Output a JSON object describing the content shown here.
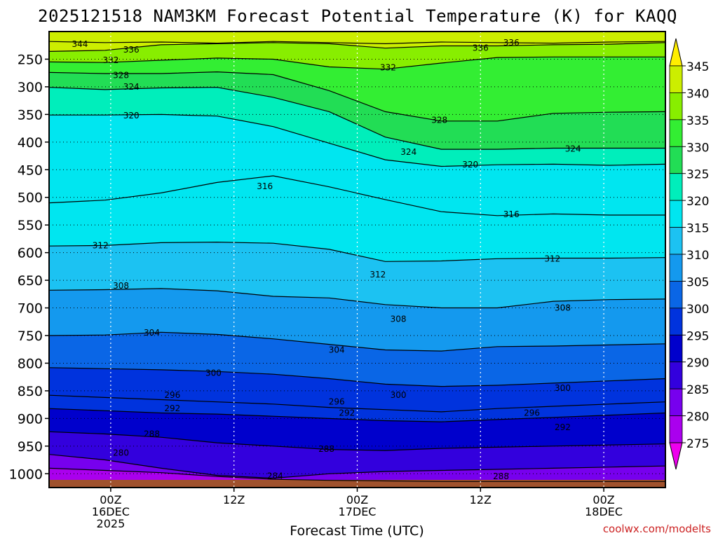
{
  "chart_data": {
    "type": "time-height-contour",
    "title": "2025121518 NAM3KM Forecast Potential Temperature (K) for KAQQ",
    "xlabel": "Forecast Time (UTC)",
    "watermark": "coolwx.com/modelts",
    "x_ticks": [
      {
        "hour": 6,
        "lines": [
          "00Z",
          "16DEC",
          "2025"
        ]
      },
      {
        "hour": 18,
        "lines": [
          "12Z"
        ]
      },
      {
        "hour": 30,
        "lines": [
          "00Z",
          "17DEC"
        ]
      },
      {
        "hour": 42,
        "lines": [
          "12Z"
        ]
      },
      {
        "hour": 54,
        "lines": [
          "00Z",
          "18DEC"
        ]
      }
    ],
    "x_range_hours": [
      0,
      60
    ],
    "y_axis": {
      "type": "pressure",
      "units": "hPa",
      "range": [
        200,
        1025
      ],
      "ticks": [
        250,
        300,
        350,
        400,
        450,
        500,
        550,
        600,
        650,
        700,
        750,
        800,
        850,
        900,
        950,
        1000
      ]
    },
    "colorbar": {
      "min": 275,
      "max": 345,
      "step": 5,
      "labels": [
        "345",
        "340",
        "335",
        "330",
        "325",
        "320",
        "315",
        "310",
        "305",
        "300",
        "295",
        "290",
        "285",
        "280",
        "275"
      ],
      "colors": [
        "#ee00ee",
        "#aa00ee",
        "#7700ee",
        "#3300dd",
        "#0000cc",
        "#0033dd",
        "#0a66e6",
        "#1499ee",
        "#1cc2f2",
        "#00e6f0",
        "#00eebb",
        "#22dd55",
        "#33ee33",
        "#88ee00",
        "#ccee00",
        "#ffee00"
      ]
    },
    "series": [
      {
        "name": "344 K",
        "values": [
          218,
          220,
          219,
          221,
          218,
          220,
          222,
          219,
          220,
          221,
          219,
          218
        ]
      },
      {
        "name": "336 K",
        "values": [
          236,
          234,
          224,
          222,
          220,
          222,
          230,
          226,
          226,
          224,
          223,
          220
        ]
      },
      {
        "name": "332 K",
        "values": [
          255,
          256,
          252,
          248,
          250,
          264,
          268,
          257,
          247,
          246,
          246,
          246
        ]
      },
      {
        "name": "328 K",
        "values": [
          274,
          276,
          276,
          273,
          278,
          307,
          345,
          362,
          362,
          348,
          346,
          345
        ]
      },
      {
        "name": "324 K",
        "values": [
          301,
          305,
          302,
          301,
          319,
          345,
          391,
          413,
          413,
          411,
          411,
          411
        ]
      },
      {
        "name": "320 K",
        "values": [
          351,
          351,
          350,
          353,
          372,
          402,
          432,
          444,
          441,
          440,
          442,
          440
        ]
      },
      {
        "name": "316 K",
        "values": [
          510,
          505,
          492,
          473,
          461,
          481,
          504,
          526,
          533,
          530,
          532,
          532
        ]
      },
      {
        "name": "312 K",
        "values": [
          588,
          587,
          582,
          581,
          583,
          594,
          616,
          615,
          611,
          610,
          610,
          609
        ]
      },
      {
        "name": "308 K",
        "values": [
          668,
          667,
          665,
          669,
          679,
          682,
          694,
          700,
          700,
          688,
          685,
          684
        ]
      },
      {
        "name": "304 K",
        "values": [
          750,
          749,
          744,
          748,
          756,
          766,
          776,
          778,
          770,
          769,
          767,
          765
        ]
      },
      {
        "name": "300 K",
        "values": [
          808,
          810,
          812,
          815,
          820,
          828,
          838,
          842,
          840,
          836,
          832,
          828
        ]
      },
      {
        "name": "296 K",
        "values": [
          858,
          862,
          866,
          870,
          874,
          880,
          884,
          888,
          882,
          878,
          874,
          870
        ]
      },
      {
        "name": "292 K",
        "values": [
          882,
          886,
          890,
          892,
          896,
          900,
          904,
          906,
          902,
          898,
          894,
          890
        ]
      },
      {
        "name": "288 K",
        "values": [
          924,
          928,
          934,
          944,
          950,
          956,
          958,
          954,
          952,
          950,
          948,
          946
        ]
      },
      {
        "name": "284 K",
        "values": [
          965,
          975,
          990,
          1003,
          1008,
          1000,
          996,
          994,
          992,
          990,
          988,
          986
        ]
      },
      {
        "name": "280 K",
        "values": [
          990,
          994,
          998,
          1005,
          1010,
          1012,
          1013,
          1014,
          1014,
          1014,
          1014,
          1014
        ]
      }
    ],
    "contour_labels": [
      {
        "text": "344",
        "hour": 3,
        "pressure": 223
      },
      {
        "text": "336",
        "hour": 42,
        "pressure": 230
      },
      {
        "text": "336",
        "hour": 45,
        "pressure": 220
      },
      {
        "text": "336",
        "hour": 8,
        "pressure": 233
      },
      {
        "text": "332",
        "hour": 6,
        "pressure": 252
      },
      {
        "text": "332",
        "hour": 33,
        "pressure": 265
      },
      {
        "text": "328",
        "hour": 7,
        "pressure": 279
      },
      {
        "text": "328",
        "hour": 38,
        "pressure": 360
      },
      {
        "text": "324",
        "hour": 8,
        "pressure": 300
      },
      {
        "text": "324",
        "hour": 35,
        "pressure": 418
      },
      {
        "text": "324",
        "hour": 51,
        "pressure": 412
      },
      {
        "text": "320",
        "hour": 8,
        "pressure": 352
      },
      {
        "text": "320",
        "hour": 41,
        "pressure": 441
      },
      {
        "text": "316",
        "hour": 21,
        "pressure": 480
      },
      {
        "text": "316",
        "hour": 45,
        "pressure": 531
      },
      {
        "text": "312",
        "hour": 5,
        "pressure": 587
      },
      {
        "text": "312",
        "hour": 32,
        "pressure": 640
      },
      {
        "text": "312",
        "hour": 49,
        "pressure": 611
      },
      {
        "text": "308",
        "hour": 7,
        "pressure": 660
      },
      {
        "text": "308",
        "hour": 34,
        "pressure": 720
      },
      {
        "text": "308",
        "hour": 50,
        "pressure": 700
      },
      {
        "text": "304",
        "hour": 10,
        "pressure": 745
      },
      {
        "text": "304",
        "hour": 28,
        "pressure": 776
      },
      {
        "text": "300",
        "hour": 16,
        "pressure": 818
      },
      {
        "text": "300",
        "hour": 34,
        "pressure": 858
      },
      {
        "text": "300",
        "hour": 50,
        "pressure": 845
      },
      {
        "text": "296",
        "hour": 12,
        "pressure": 858
      },
      {
        "text": "296",
        "hour": 28,
        "pressure": 870
      },
      {
        "text": "296",
        "hour": 47,
        "pressure": 890
      },
      {
        "text": "292",
        "hour": 12,
        "pressure": 882
      },
      {
        "text": "292",
        "hour": 29,
        "pressure": 890
      },
      {
        "text": "292",
        "hour": 50,
        "pressure": 916
      },
      {
        "text": "288",
        "hour": 10,
        "pressure": 928
      },
      {
        "text": "288",
        "hour": 27,
        "pressure": 955
      },
      {
        "text": "288",
        "hour": 44,
        "pressure": 1005
      },
      {
        "text": "284",
        "hour": 22,
        "pressure": 1004
      },
      {
        "text": "280",
        "hour": 7,
        "pressure": 962
      }
    ]
  }
}
